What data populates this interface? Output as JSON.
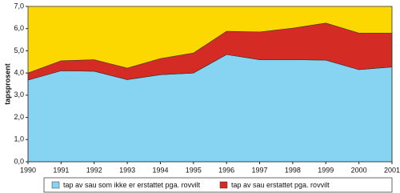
{
  "chart_data": {
    "type": "stacked-area",
    "y_label": "tapsprosent",
    "x": [
      1990,
      1991,
      1992,
      1993,
      1994,
      1995,
      1996,
      1997,
      1998,
      1999,
      2000,
      2001
    ],
    "series": [
      {
        "name": "tap av sau som ikke er erstattet pga. rovvilt",
        "color": "#87d3f2",
        "values": [
          3.68,
          4.1,
          4.08,
          3.7,
          3.92,
          4.0,
          4.83,
          4.6,
          4.6,
          4.58,
          4.15,
          4.27
        ]
      },
      {
        "name": "tap av sau erstattet pga. rovvilt",
        "color": "#d52b25",
        "values": [
          0.32,
          0.45,
          0.52,
          0.52,
          0.73,
          0.9,
          1.05,
          1.25,
          1.42,
          1.67,
          1.65,
          1.53
        ]
      }
    ],
    "xlim": [
      1990,
      2001
    ],
    "xticks": [
      1990,
      1991,
      1992,
      1993,
      1994,
      1995,
      1996,
      1997,
      1998,
      1999,
      2000,
      2001
    ],
    "ylim": [
      0,
      7
    ],
    "yticks": [
      {
        "value": 0,
        "label": "0,0"
      },
      {
        "value": 1,
        "label": "1,0"
      },
      {
        "value": 2,
        "label": "2,0"
      },
      {
        "value": 3,
        "label": "3,0"
      },
      {
        "value": 4,
        "label": "4,0"
      },
      {
        "value": 5,
        "label": "5,0"
      },
      {
        "value": 6,
        "label": "6,0"
      },
      {
        "value": 7,
        "label": "7,0"
      }
    ],
    "background": "#fdd800"
  }
}
